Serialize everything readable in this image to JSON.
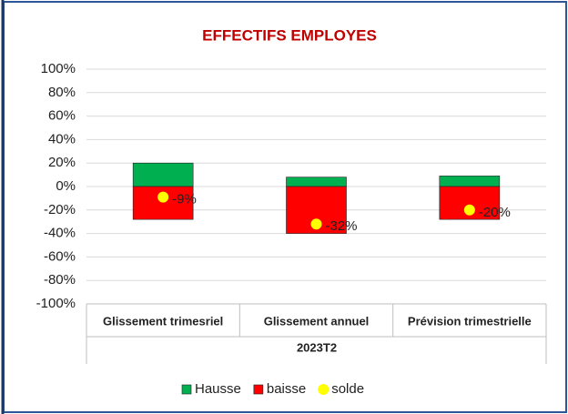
{
  "chart_data": {
    "type": "bar",
    "title": "EFFECTIFS EMPLOYES",
    "categories": [
      "Glissement  trimesriel",
      "Glissement  annuel",
      "Prévision trimestrielle"
    ],
    "group_label": "2023T2",
    "series": [
      {
        "name": "Hausse",
        "color": "#00b050",
        "values": [
          20,
          8,
          9
        ]
      },
      {
        "name": "baisse",
        "color": "#ff0000",
        "values": [
          -28,
          -40,
          -28
        ]
      },
      {
        "name": "solde",
        "color": "#ffff00",
        "type": "scatter",
        "values": [
          -9,
          -32,
          -20
        ],
        "value_labels": [
          "-9%",
          "-32%",
          "-20%"
        ]
      }
    ],
    "ylim": [
      -100,
      100
    ],
    "yticks": [
      {
        "value": -100,
        "label": "-100%"
      },
      {
        "value": -80,
        "label": "-80%"
      },
      {
        "value": -60,
        "label": "-60%"
      },
      {
        "value": -40,
        "label": "-40%"
      },
      {
        "value": -20,
        "label": "-20%"
      },
      {
        "value": 0,
        "label": "0%"
      },
      {
        "value": 20,
        "label": "20%"
      },
      {
        "value": 40,
        "label": "40%"
      },
      {
        "value": 60,
        "label": "60%"
      },
      {
        "value": 80,
        "label": "80%"
      },
      {
        "value": 100,
        "label": "100%"
      }
    ],
    "grid": true,
    "legend": "bottom"
  }
}
